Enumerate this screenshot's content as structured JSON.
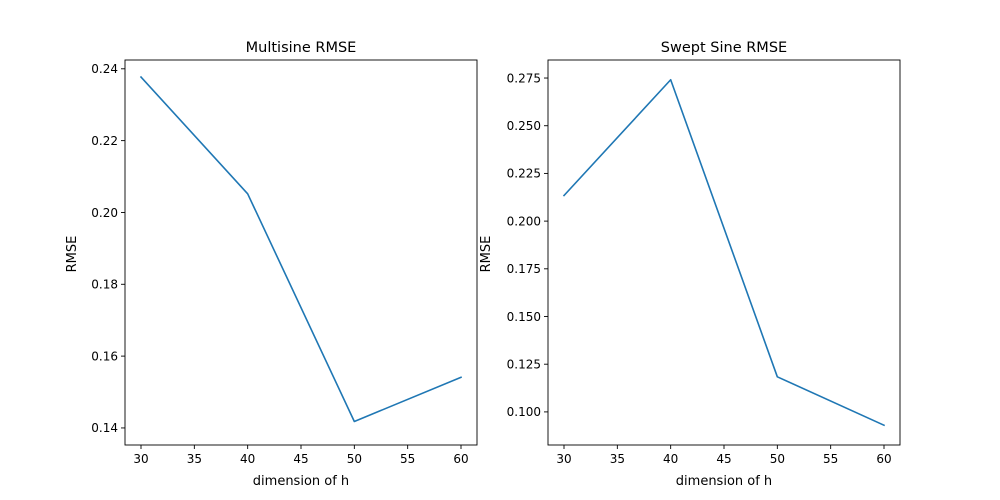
{
  "chart_data": [
    {
      "type": "line",
      "title": "Multisine RMSE",
      "xlabel": "dimension of h",
      "ylabel": "RMSE",
      "x": [
        30,
        40,
        50,
        60
      ],
      "series": [
        {
          "values": [
            0.2377,
            0.2052,
            0.1418,
            0.1541
          ],
          "color": "#1f77b4"
        }
      ],
      "xlim": [
        28.5,
        61.5
      ],
      "ylim": [
        0.13525,
        0.24245
      ],
      "xticks": [
        30,
        35,
        40,
        45,
        50,
        55,
        60
      ],
      "xtick_labels": [
        "30",
        "35",
        "40",
        "45",
        "50",
        "55",
        "60"
      ],
      "yticks": [
        0.14,
        0.16,
        0.18,
        0.2,
        0.22,
        0.24
      ],
      "ytick_labels": [
        "0.14",
        "0.16",
        "0.18",
        "0.20",
        "0.22",
        "0.24"
      ],
      "grid": false,
      "legend": false
    },
    {
      "type": "line",
      "title": "Swept Sine RMSE",
      "xlabel": "dimension of h",
      "ylabel": "RMSE",
      "x": [
        30,
        40,
        50,
        60
      ],
      "series": [
        {
          "values": [
            0.2134,
            0.2741,
            0.1184,
            0.093
          ],
          "color": "#1f77b4"
        }
      ],
      "xlim": [
        28.5,
        61.5
      ],
      "ylim": [
        0.08265,
        0.28445
      ],
      "xticks": [
        30,
        35,
        40,
        45,
        50,
        55,
        60
      ],
      "xtick_labels": [
        "30",
        "35",
        "40",
        "45",
        "50",
        "55",
        "60"
      ],
      "yticks": [
        0.1,
        0.125,
        0.15,
        0.175,
        0.2,
        0.225,
        0.25,
        0.275
      ],
      "ytick_labels": [
        "0.100",
        "0.125",
        "0.150",
        "0.175",
        "0.200",
        "0.225",
        "0.250",
        "0.275"
      ],
      "grid": false,
      "legend": false
    }
  ]
}
